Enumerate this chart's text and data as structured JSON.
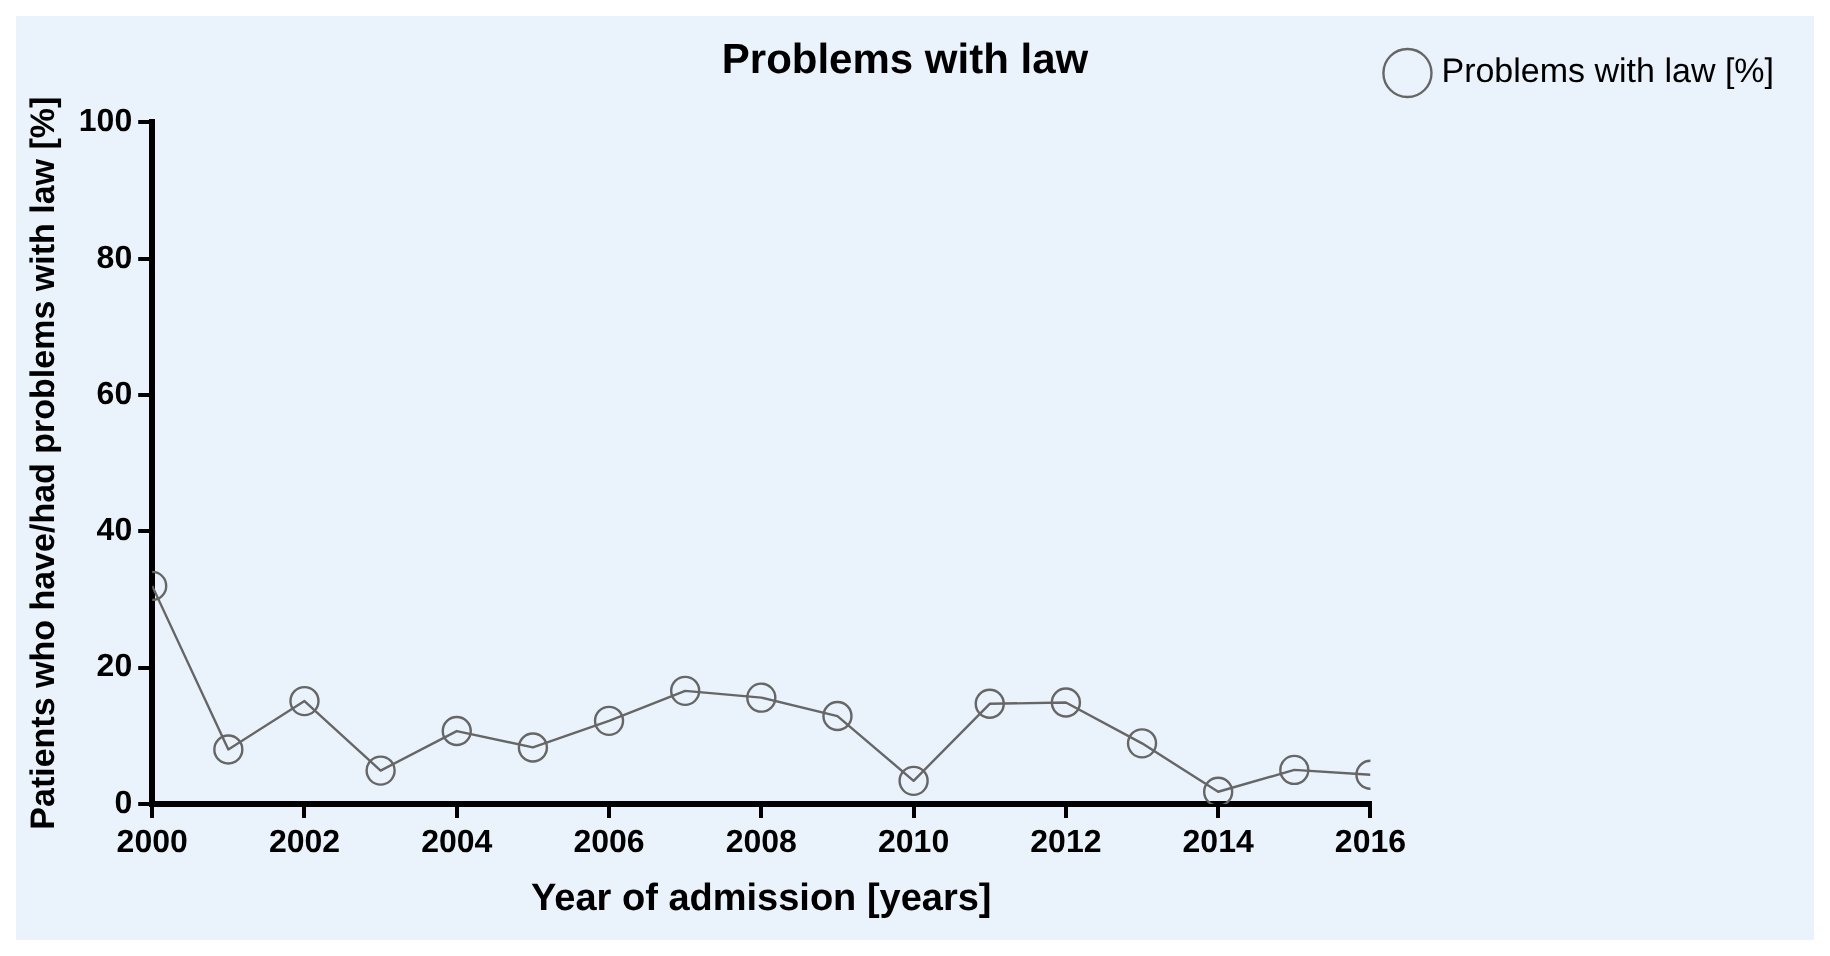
{
  "chart_data": {
    "type": "line",
    "title": "Problems with law",
    "xlabel": "Year of admission [years]",
    "ylabel": "Patients who have/had problems with law [%]",
    "x": [
      2000,
      2001,
      2002,
      2003,
      2004,
      2005,
      2006,
      2007,
      2008,
      2009,
      2010,
      2011,
      2012,
      2013,
      2014,
      2015,
      2016
    ],
    "series": [
      {
        "name": "Problems with law [%]",
        "color": "#666666",
        "values": [
          32,
          8,
          15.1,
          4.9,
          10.7,
          8.3,
          12.2,
          16.6,
          15.6,
          12.9,
          3.4,
          14.7,
          14.9,
          8.9,
          1.8,
          5,
          4.3
        ]
      }
    ],
    "xlim": [
      2000,
      2016
    ],
    "xticks": [
      2000,
      2002,
      2004,
      2006,
      2008,
      2010,
      2012,
      2014,
      2016
    ],
    "ylim": [
      0,
      100
    ],
    "yticks": [
      0,
      20,
      40,
      60,
      80,
      100
    ],
    "grid": false,
    "legend": "top right",
    "marker": "circle",
    "line_style": "solid"
  }
}
